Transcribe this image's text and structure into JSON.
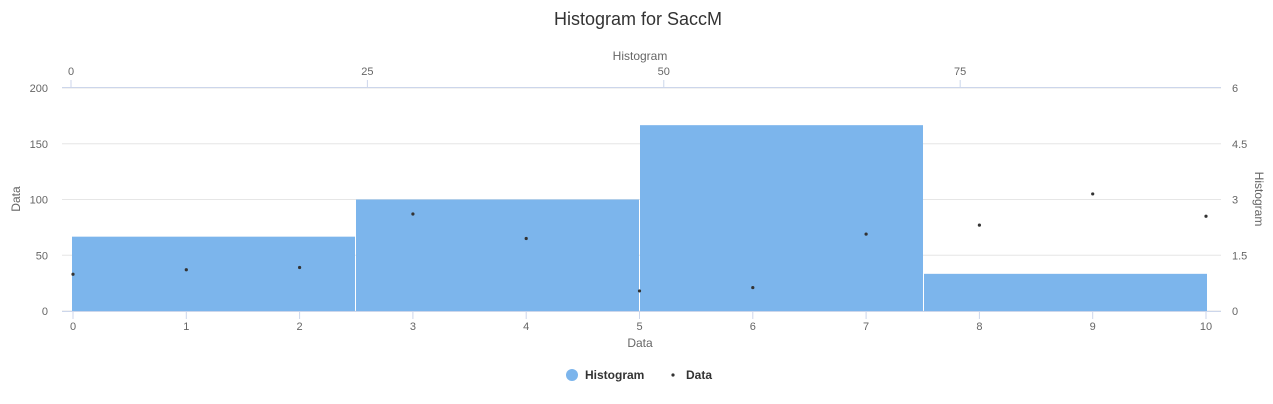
{
  "chart_data": {
    "type": "bar",
    "title": "Histogram for SaccM",
    "colors": {
      "histogram": "#7cb5ec",
      "scatter": "#333333",
      "grid": "#e6e6e6",
      "axis": "#ccd6eb"
    },
    "bottom_x_axis": {
      "title": "Data",
      "range": [
        0,
        10
      ],
      "ticks": [
        0,
        1,
        2,
        3,
        4,
        5,
        6,
        7,
        8,
        9,
        10
      ]
    },
    "top_x_axis": {
      "title": "Histogram",
      "range": [
        0,
        97
      ],
      "ticks": [
        0,
        25,
        50,
        75
      ]
    },
    "left_y_axis": {
      "title": "Data",
      "range": [
        0,
        200
      ],
      "ticks": [
        0,
        50,
        100,
        150,
        200
      ]
    },
    "right_y_axis": {
      "title": "Histogram",
      "range": [
        0,
        6
      ],
      "ticks": [
        0,
        1.5,
        3,
        4.5,
        6
      ]
    },
    "histogram": {
      "name": "Histogram",
      "bins": [
        {
          "x0": 0,
          "x1": 2.5,
          "count": 2
        },
        {
          "x0": 2.5,
          "x1": 5,
          "count": 3
        },
        {
          "x0": 5,
          "x1": 7.5,
          "count": 5
        },
        {
          "x0": 7.5,
          "x1": 10,
          "count": 1
        }
      ]
    },
    "scatter": {
      "name": "Data",
      "points": [
        {
          "x": 0,
          "y": 33
        },
        {
          "x": 1,
          "y": 37
        },
        {
          "x": 2,
          "y": 39
        },
        {
          "x": 3,
          "y": 87
        },
        {
          "x": 4,
          "y": 65
        },
        {
          "x": 5,
          "y": 18
        },
        {
          "x": 6,
          "y": 21
        },
        {
          "x": 7,
          "y": 69
        },
        {
          "x": 8,
          "y": 77
        },
        {
          "x": 9,
          "y": 105
        },
        {
          "x": 10,
          "y": 85
        }
      ]
    },
    "legend": {
      "placement": "bottom-center",
      "items": [
        "Histogram",
        "Data"
      ]
    }
  }
}
